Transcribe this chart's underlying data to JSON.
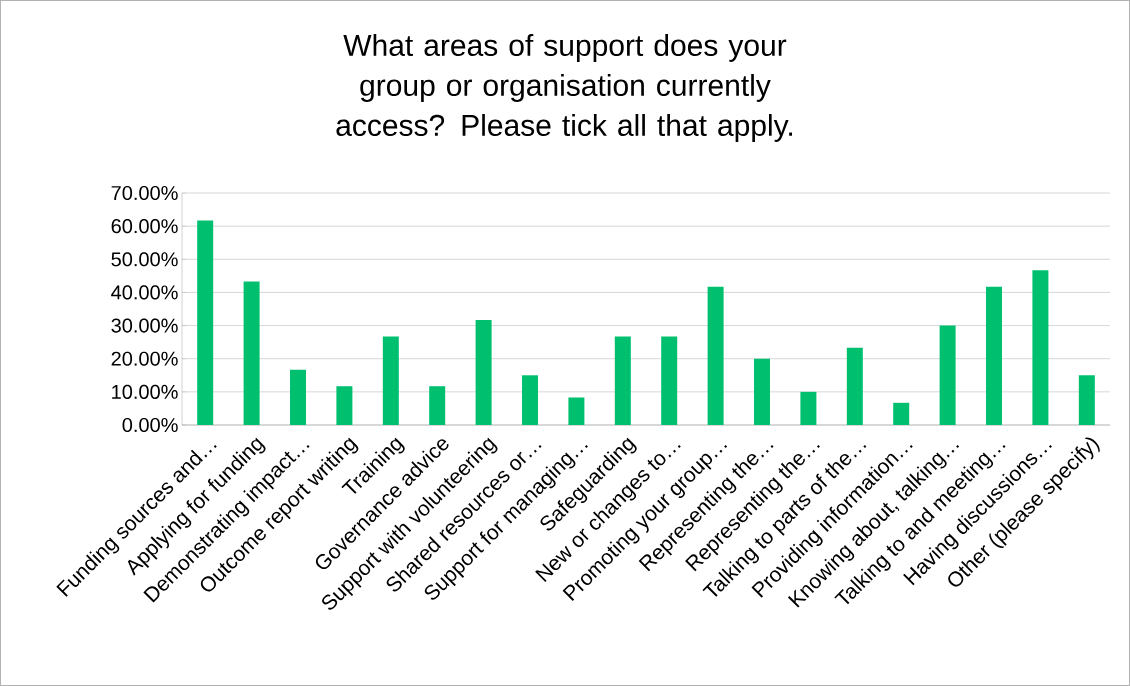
{
  "chart_data": {
    "type": "bar",
    "title": "What areas of support does your group or organisation currently access? Please tick all that apply.",
    "categories": [
      "Funding sources and…",
      "Applying for funding",
      "Demonstrating impact…",
      "Outcome report writing",
      "Training",
      "Governance advice",
      "Support with volunteering",
      "Shared resources or…",
      "Support for managing…",
      "Safeguarding",
      "New or changes to…",
      "Promoting your group…",
      "Representing the…",
      "Representing the…",
      "Talking to parts of the…",
      "Providing information…",
      "Knowing about, talking…",
      "Talking to and meeting…",
      "Having discussions…",
      "Other (please specify)"
    ],
    "values": [
      61.7,
      43.3,
      16.7,
      11.7,
      26.7,
      11.7,
      31.7,
      15,
      8.3,
      26.7,
      26.7,
      41.7,
      20,
      10,
      23.3,
      6.7,
      30,
      41.7,
      46.7,
      15
    ],
    "color": "#00c06f",
    "ylim": [
      0,
      70
    ],
    "yticks": [
      {
        "value": 0,
        "label": "0.00%"
      },
      {
        "value": 10,
        "label": "10.00%"
      },
      {
        "value": 20,
        "label": "20.00%"
      },
      {
        "value": 30,
        "label": "30.00%"
      },
      {
        "value": 40,
        "label": "40.00%"
      },
      {
        "value": 50,
        "label": "50.00%"
      },
      {
        "value": 60,
        "label": "60.00%"
      },
      {
        "value": 70,
        "label": "70.00%"
      }
    ],
    "grid": "y"
  }
}
